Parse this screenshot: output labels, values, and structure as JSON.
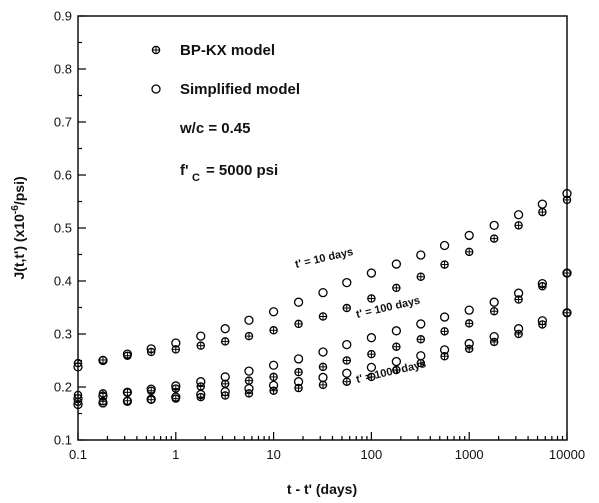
{
  "chart_data": {
    "type": "scatter",
    "title": "",
    "xlabel": "t - t' (days)",
    "ylabel": "J(t,t') (x10⁻⁶/psi)",
    "xscale": "log",
    "xlim": [
      0.1,
      10000
    ],
    "ylim": [
      0.1,
      0.9
    ],
    "x_ticks": [
      "0.1",
      "1",
      "10",
      "100",
      "1000",
      "10000"
    ],
    "y_ticks": [
      "0.1",
      "0.2",
      "0.3",
      "0.4",
      "0.5",
      "0.6",
      "0.7",
      "0.8",
      "0.9"
    ],
    "grid": false,
    "legend": {
      "placement": "top-left",
      "entries": [
        {
          "label": "BP-KX model",
          "marker": "crossed-circle"
        },
        {
          "label": "Simplified model",
          "marker": "open-circle"
        }
      ]
    },
    "annotations": {
      "wc": "w/c = 0.45",
      "fc_symbol": "f'",
      "fc_subscript": "C",
      "fc_value": "= 5000 psi"
    },
    "curve_labels": [
      "t' = 10 days",
      "t' = 100 days",
      "t' = 1000 days"
    ],
    "series": [
      {
        "name": "BP-KX model",
        "marker": "crossed-circle",
        "groups": [
          {
            "label": "t' = 10 days",
            "x": [
              0.1,
              0.18,
              0.32,
              0.56,
              1,
              1.8,
              3.2,
              5.6,
              10,
              18,
              32,
              56,
              100,
              180,
              320,
              560,
              1000,
              1800,
              3200,
              5600,
              10000
            ],
            "y": [
              0.245,
              0.251,
              0.259,
              0.266,
              0.271,
              0.278,
              0.286,
              0.296,
              0.307,
              0.319,
              0.333,
              0.349,
              0.367,
              0.387,
              0.408,
              0.431,
              0.455,
              0.48,
              0.505,
              0.53,
              0.553
            ]
          },
          {
            "label": "t' = 100 days",
            "x": [
              0.1,
              0.18,
              0.32,
              0.56,
              1,
              1.8,
              3.2,
              5.6,
              10,
              18,
              32,
              56,
              100,
              180,
              320,
              560,
              1000,
              1800,
              3200,
              5600,
              10000
            ],
            "y": [
              0.185,
              0.188,
              0.19,
              0.193,
              0.197,
              0.201,
              0.206,
              0.212,
              0.219,
              0.228,
              0.238,
              0.25,
              0.262,
              0.276,
              0.29,
              0.305,
              0.32,
              0.343,
              0.365,
              0.39,
              0.415
            ]
          },
          {
            "label": "t' = 1000 days",
            "x": [
              0.1,
              0.18,
              0.32,
              0.56,
              1,
              1.8,
              3.2,
              5.6,
              10,
              18,
              32,
              56,
              100,
              180,
              320,
              560,
              1000,
              1800,
              3200,
              5600,
              10000
            ],
            "y": [
              0.172,
              0.173,
              0.174,
              0.176,
              0.178,
              0.181,
              0.184,
              0.188,
              0.193,
              0.198,
              0.204,
              0.21,
              0.219,
              0.232,
              0.245,
              0.258,
              0.272,
              0.285,
              0.3,
              0.318,
              0.34
            ]
          }
        ]
      },
      {
        "name": "Simplified model",
        "marker": "open-circle",
        "groups": [
          {
            "label": "t' = 10 days",
            "x": [
              0.1,
              0.18,
              0.32,
              0.56,
              1,
              1.8,
              3.2,
              5.6,
              10,
              18,
              32,
              56,
              100,
              180,
              320,
              560,
              1000,
              1800,
              3200,
              5600,
              10000
            ],
            "y": [
              0.238,
              0.25,
              0.262,
              0.272,
              0.283,
              0.296,
              0.31,
              0.326,
              0.342,
              0.36,
              0.378,
              0.397,
              0.415,
              0.432,
              0.449,
              0.467,
              0.486,
              0.505,
              0.525,
              0.545,
              0.565
            ]
          },
          {
            "label": "t' = 100 days",
            "x": [
              0.1,
              0.18,
              0.32,
              0.56,
              1,
              1.8,
              3.2,
              5.6,
              10,
              18,
              32,
              56,
              100,
              180,
              320,
              560,
              1000,
              1800,
              3200,
              5600,
              10000
            ],
            "y": [
              0.178,
              0.183,
              0.19,
              0.196,
              0.202,
              0.21,
              0.219,
              0.23,
              0.241,
              0.253,
              0.266,
              0.28,
              0.293,
              0.306,
              0.319,
              0.332,
              0.345,
              0.36,
              0.377,
              0.395,
              0.415
            ]
          },
          {
            "label": "t' = 1000 days",
            "x": [
              0.1,
              0.18,
              0.32,
              0.56,
              1,
              1.8,
              3.2,
              5.6,
              10,
              18,
              32,
              56,
              100,
              180,
              320,
              560,
              1000,
              1800,
              3200,
              5600,
              10000
            ],
            "y": [
              0.167,
              0.17,
              0.173,
              0.177,
              0.181,
              0.186,
              0.191,
              0.197,
              0.203,
              0.21,
              0.218,
              0.226,
              0.237,
              0.248,
              0.259,
              0.27,
              0.282,
              0.295,
              0.31,
              0.325,
              0.34
            ]
          }
        ]
      }
    ]
  }
}
